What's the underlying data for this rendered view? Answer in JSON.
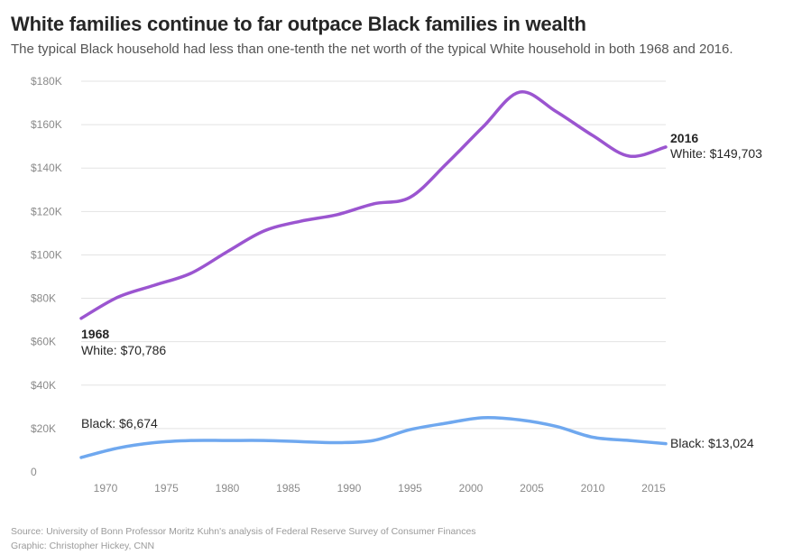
{
  "chart_data": {
    "type": "line",
    "title": "White families continue to far outpace Black families in wealth",
    "subtitle": "The typical Black household had less than one-tenth the net worth of the typical White household in both 1968 and 2016.",
    "xlabel": "",
    "ylabel": "",
    "xlim": [
      1968,
      2016
    ],
    "ylim": [
      0,
      180000
    ],
    "x_ticks": [
      1970,
      1975,
      1980,
      1985,
      1990,
      1995,
      2000,
      2005,
      2010,
      2015
    ],
    "y_ticks": [
      0,
      20000,
      40000,
      60000,
      80000,
      100000,
      120000,
      140000,
      160000,
      180000
    ],
    "y_tick_labels": [
      "0",
      "$20K",
      "$40K",
      "$60K",
      "$80K",
      "$100K",
      "$120K",
      "$140K",
      "$160K",
      "$180K"
    ],
    "grid": true,
    "series": [
      {
        "name": "White",
        "color": "#9b55d0",
        "x": [
          1968,
          1971,
          1974,
          1977,
          1980,
          1983,
          1986,
          1989,
          1992,
          1995,
          1998,
          2001,
          2004,
          2007,
          2010,
          2013,
          2016
        ],
        "y": [
          70786,
          80500,
          86000,
          91500,
          101500,
          111000,
          115500,
          118500,
          123500,
          126500,
          142000,
          159000,
          175000,
          166000,
          155000,
          145500,
          149703
        ]
      },
      {
        "name": "Black",
        "color": "#6fa8ef",
        "x": [
          1968,
          1971,
          1974,
          1977,
          1980,
          1983,
          1986,
          1989,
          1992,
          1995,
          1998,
          2001,
          2004,
          2007,
          2010,
          2013,
          2016
        ],
        "y": [
          6674,
          11000,
          13500,
          14500,
          14500,
          14500,
          14000,
          13500,
          14500,
          19500,
          22500,
          25000,
          24000,
          21000,
          16000,
          14500,
          13024
        ]
      }
    ],
    "annotations": {
      "start_year": "1968",
      "start_white": "White: $70,786",
      "start_black": "Black: $6,674",
      "end_year": "2016",
      "end_white": "White: $149,703",
      "end_black": "Black: $13,024"
    },
    "source": "Source: University of Bonn Professor Moritz Kuhn's analysis of Federal Reserve Survey of Consumer Finances",
    "credit": "Graphic: Christopher Hickey, CNN"
  }
}
